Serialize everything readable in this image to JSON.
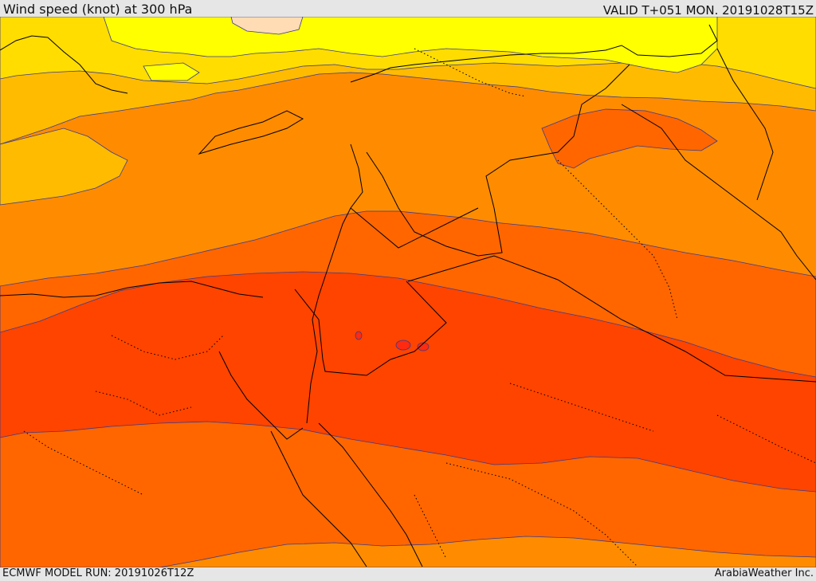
{
  "header": {
    "title": "Wind speed (knot) at 300 hPa",
    "valid": "VALID T+051 MON. 20191028T15Z"
  },
  "footer": {
    "model_run": "ECMWF MODEL RUN: 20191026T12Z",
    "credit": "ArabiaWeather Inc."
  },
  "map": {
    "variable": "wind speed",
    "units": "knot",
    "level": "300 hPa",
    "band_colors": [
      "#ffff00",
      "#ffdd00",
      "#ffbb00",
      "#ff8c00",
      "#ff6600",
      "#ff4400",
      "#ff2a10",
      "#ffdcb4"
    ],
    "contour_color": "#3a3a8c",
    "border_color": "#000000"
  }
}
